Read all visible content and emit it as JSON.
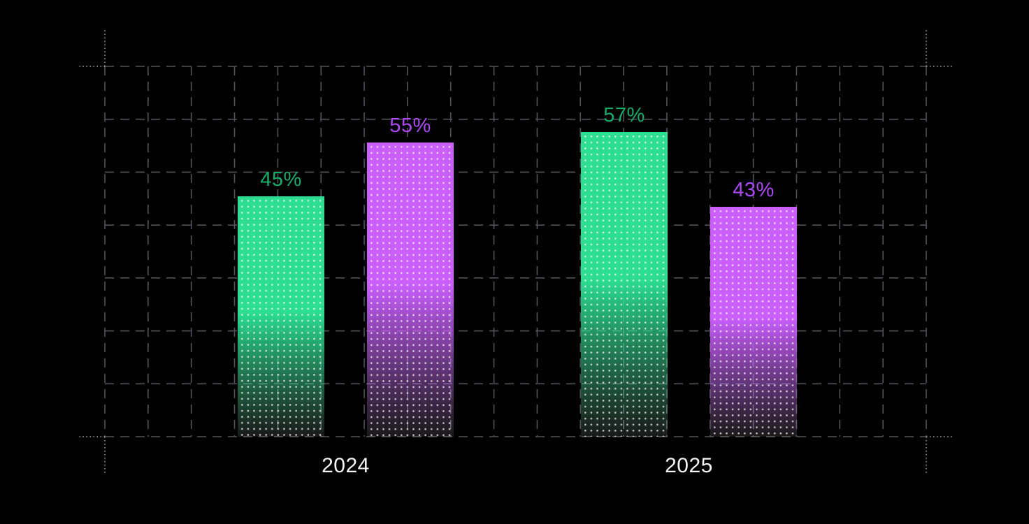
{
  "chart_data": {
    "type": "bar",
    "title": "",
    "categories": [
      "2024",
      "2025"
    ],
    "series": [
      {
        "name": "green",
        "color": "#2DDE92",
        "label_color": "#16AC6B",
        "values": [
          45,
          57
        ]
      },
      {
        "name": "purple",
        "color": "#CA5FFE",
        "label_color": "#AC49F2",
        "values": [
          55,
          43
        ]
      }
    ],
    "value_labels": [
      "45%",
      "55%",
      "57%",
      "43%"
    ],
    "value_suffix": "%",
    "ylim": [
      0,
      70
    ],
    "grid": "dashed",
    "legend": "none",
    "background": "#000000",
    "colors": {
      "grid_line": "#53535b",
      "corner_mark": "#9d9da3",
      "category_label": "#f5f5f5"
    }
  }
}
